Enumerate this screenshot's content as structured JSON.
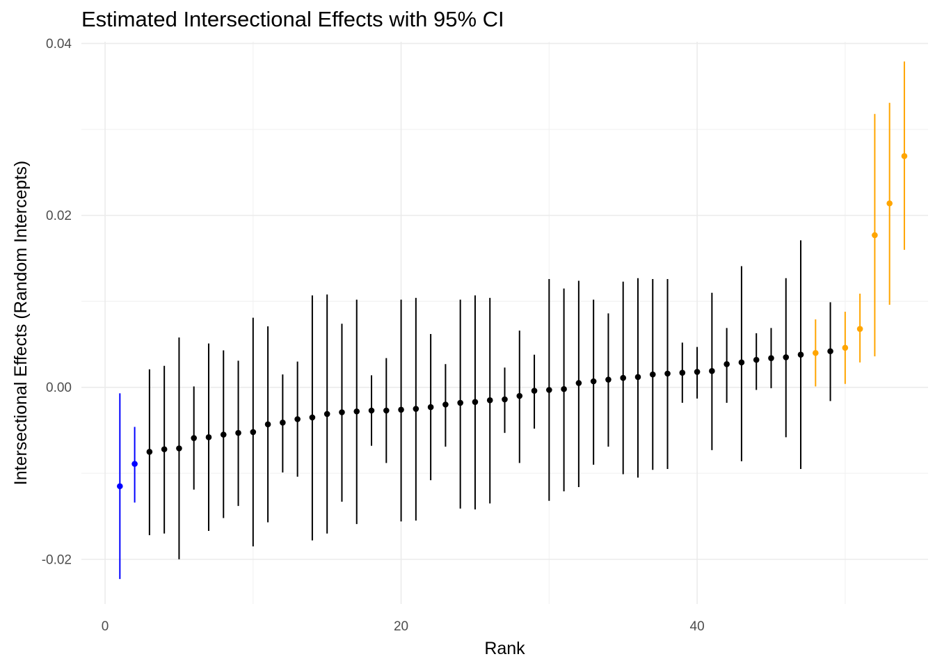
{
  "chart_data": {
    "type": "scatter",
    "title": "Estimated Intersectional Effects with 95% CI",
    "xlabel": "Rank",
    "ylabel": "Intersectional Effects (Random Intercepts)",
    "xlim": [
      -1.6,
      55.6
    ],
    "ylim": [
      -0.0252,
      0.0402
    ],
    "x_ticks": [
      0,
      20,
      40
    ],
    "x_tick_labels": [
      "0",
      "20",
      "40"
    ],
    "y_ticks": [
      -0.02,
      0.0,
      0.02,
      0.04
    ],
    "y_tick_labels": [
      "-0.02",
      "0.00",
      "0.02",
      "0.04"
    ],
    "grid": true,
    "legend": "none",
    "colors": {
      "low": "#0000ff",
      "neutral": "#000000",
      "high": "#ffa500"
    },
    "series": [
      {
        "color": "#0000ff",
        "points": [
          {
            "x": 1,
            "y": -0.0115,
            "lower": -0.0223,
            "upper": -0.0007
          },
          {
            "x": 2,
            "y": -0.0089,
            "lower": -0.0134,
            "upper": -0.0046
          }
        ]
      },
      {
        "color": "#000000",
        "points": [
          {
            "x": 3,
            "y": -0.0075,
            "lower": -0.0172,
            "upper": 0.0021
          },
          {
            "x": 4,
            "y": -0.0072,
            "lower": -0.017,
            "upper": 0.0025
          },
          {
            "x": 5,
            "y": -0.0071,
            "lower": -0.02,
            "upper": 0.0058
          },
          {
            "x": 6,
            "y": -0.0059,
            "lower": -0.0119,
            "upper": 0.0001
          },
          {
            "x": 7,
            "y": -0.0058,
            "lower": -0.0167,
            "upper": 0.0051
          },
          {
            "x": 8,
            "y": -0.0055,
            "lower": -0.0152,
            "upper": 0.0043
          },
          {
            "x": 9,
            "y": -0.0053,
            "lower": -0.0138,
            "upper": 0.0031
          },
          {
            "x": 10,
            "y": -0.0052,
            "lower": -0.0185,
            "upper": 0.0081
          },
          {
            "x": 11,
            "y": -0.0043,
            "lower": -0.0157,
            "upper": 0.0071
          },
          {
            "x": 12,
            "y": -0.0041,
            "lower": -0.0099,
            "upper": 0.0015
          },
          {
            "x": 13,
            "y": -0.0037,
            "lower": -0.0104,
            "upper": 0.003
          },
          {
            "x": 14,
            "y": -0.0035,
            "lower": -0.0178,
            "upper": 0.0107
          },
          {
            "x": 15,
            "y": -0.0031,
            "lower": -0.017,
            "upper": 0.0108
          },
          {
            "x": 16,
            "y": -0.0029,
            "lower": -0.0133,
            "upper": 0.0074
          },
          {
            "x": 17,
            "y": -0.0028,
            "lower": -0.0159,
            "upper": 0.0102
          },
          {
            "x": 18,
            "y": -0.0027,
            "lower": -0.0068,
            "upper": 0.0014
          },
          {
            "x": 19,
            "y": -0.0027,
            "lower": -0.0088,
            "upper": 0.0034
          },
          {
            "x": 20,
            "y": -0.0026,
            "lower": -0.0156,
            "upper": 0.0102
          },
          {
            "x": 21,
            "y": -0.0025,
            "lower": -0.0155,
            "upper": 0.0104
          },
          {
            "x": 22,
            "y": -0.0023,
            "lower": -0.0108,
            "upper": 0.0062
          },
          {
            "x": 23,
            "y": -0.002,
            "lower": -0.0069,
            "upper": 0.0027
          },
          {
            "x": 24,
            "y": -0.0018,
            "lower": -0.0141,
            "upper": 0.0102
          },
          {
            "x": 25,
            "y": -0.0017,
            "lower": -0.0142,
            "upper": 0.0107
          },
          {
            "x": 26,
            "y": -0.0015,
            "lower": -0.0135,
            "upper": 0.0104
          },
          {
            "x": 27,
            "y": -0.0014,
            "lower": -0.0053,
            "upper": 0.0023
          },
          {
            "x": 28,
            "y": -0.001,
            "lower": -0.0088,
            "upper": 0.0066
          },
          {
            "x": 29,
            "y": -0.0004,
            "lower": -0.0048,
            "upper": 0.0038
          },
          {
            "x": 30,
            "y": -0.0003,
            "lower": -0.0132,
            "upper": 0.0126
          },
          {
            "x": 31,
            "y": -0.0002,
            "lower": -0.0121,
            "upper": 0.0115
          },
          {
            "x": 32,
            "y": 0.0005,
            "lower": -0.0116,
            "upper": 0.0124
          },
          {
            "x": 33,
            "y": 0.0007,
            "lower": -0.009,
            "upper": 0.0102
          },
          {
            "x": 34,
            "y": 0.0009,
            "lower": -0.0069,
            "upper": 0.0086
          },
          {
            "x": 35,
            "y": 0.0011,
            "lower": -0.0101,
            "upper": 0.0123
          },
          {
            "x": 36,
            "y": 0.0012,
            "lower": -0.0105,
            "upper": 0.0127
          },
          {
            "x": 37,
            "y": 0.0015,
            "lower": -0.0096,
            "upper": 0.0126
          },
          {
            "x": 38,
            "y": 0.0016,
            "lower": -0.0095,
            "upper": 0.0126
          },
          {
            "x": 39,
            "y": 0.0017,
            "lower": -0.0018,
            "upper": 0.0052
          },
          {
            "x": 40,
            "y": 0.0018,
            "lower": -0.0013,
            "upper": 0.0047
          },
          {
            "x": 41,
            "y": 0.0019,
            "lower": -0.0073,
            "upper": 0.011
          },
          {
            "x": 42,
            "y": 0.0027,
            "lower": -0.0018,
            "upper": 0.0069
          },
          {
            "x": 43,
            "y": 0.0029,
            "lower": -0.0086,
            "upper": 0.0141
          },
          {
            "x": 44,
            "y": 0.0032,
            "lower": -0.0003,
            "upper": 0.0063
          },
          {
            "x": 45,
            "y": 0.0034,
            "lower": -0.0001,
            "upper": 0.0069
          },
          {
            "x": 46,
            "y": 0.0035,
            "lower": -0.0058,
            "upper": 0.0127
          },
          {
            "x": 47,
            "y": 0.0038,
            "lower": -0.0095,
            "upper": 0.0171
          },
          {
            "x": 49,
            "y": 0.0042,
            "lower": -0.0016,
            "upper": 0.0099
          }
        ]
      },
      {
        "color": "#ffa500",
        "points": [
          {
            "x": 48,
            "y": 0.004,
            "lower": 0.0001,
            "upper": 0.0079
          },
          {
            "x": 50,
            "y": 0.0046,
            "lower": 0.0004,
            "upper": 0.0088
          },
          {
            "x": 51,
            "y": 0.0068,
            "lower": 0.0029,
            "upper": 0.0109
          },
          {
            "x": 52,
            "y": 0.0177,
            "lower": 0.0036,
            "upper": 0.0318
          },
          {
            "x": 53,
            "y": 0.0214,
            "lower": 0.0096,
            "upper": 0.0331
          },
          {
            "x": 54,
            "y": 0.0269,
            "lower": 0.016,
            "upper": 0.0379
          }
        ]
      }
    ]
  }
}
